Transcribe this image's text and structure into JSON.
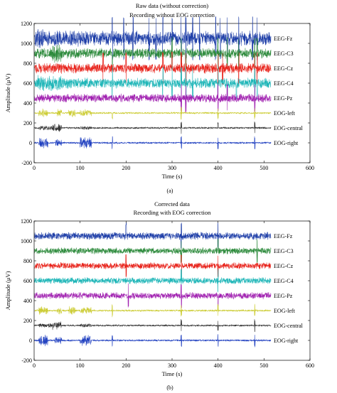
{
  "chart_data": [
    {
      "type": "line",
      "panel_label": "(a)",
      "title": "Raw data (without correction)",
      "subtitle": "Recording without EOG correction",
      "xlabel": "Time (s)",
      "ylabel": "Amplitude (μV)",
      "xlim": [
        0,
        600
      ],
      "ylim": [
        -200,
        1200
      ],
      "x_ticks": [
        "0",
        "100",
        "200",
        "300",
        "400",
        "500",
        "600"
      ],
      "y_ticks": [
        "-200",
        "0",
        "200",
        "400",
        "600",
        "800",
        "1000",
        "1200"
      ],
      "x_end": 515,
      "series": [
        {
          "name": "EEG-Fz",
          "offset": 1050,
          "color": "#1f3fa8",
          "amp": 80,
          "bursts": [
            [
              2,
              20,
              120
            ],
            [
              25,
              30,
              90
            ],
            [
              40,
              60,
              90
            ],
            [
              70,
              125,
              90
            ],
            [
              125,
              140,
              60
            ]
          ],
          "spikes": [
            170,
            195,
            215,
            250,
            265,
            280,
            300,
            320,
            330,
            345,
            360,
            395,
            405,
            420,
            445,
            475,
            485
          ]
        },
        {
          "name": "EEG-C3",
          "offset": 900,
          "color": "#2e8b3d",
          "amp": 55,
          "bursts": [
            [
              40,
              60,
              110
            ]
          ],
          "spikes": [
            170,
            300,
            320,
            330,
            400,
            420,
            445,
            480,
            485
          ]
        },
        {
          "name": "EEG-Cz",
          "offset": 750,
          "color": "#e8231b",
          "amp": 55,
          "bursts": [
            [
              40,
              60,
              60
            ]
          ],
          "spikes": [
            150,
            200,
            280,
            300,
            320,
            330,
            400,
            410,
            445,
            480,
            485
          ]
        },
        {
          "name": "EEG-C4",
          "offset": 600,
          "color": "#1fb6b8",
          "amp": 55,
          "bursts": [
            [
              8,
              60,
              90
            ],
            [
              60,
              125,
              60
            ]
          ],
          "spikes": [
            170,
            280,
            300,
            320,
            330,
            345,
            400,
            420,
            440,
            480,
            485
          ]
        },
        {
          "name": "EEG-Pz",
          "offset": 450,
          "color": "#a020b0",
          "amp": 45,
          "bursts": [],
          "spikes": [
            320,
            330,
            400,
            420,
            480
          ]
        },
        {
          "name": "EOG-left",
          "offset": 300,
          "color": "#cccc33",
          "amp": 10,
          "bursts": [
            [
              10,
              30,
              45
            ],
            [
              50,
              60,
              40
            ],
            [
              75,
              90,
              45
            ],
            [
              100,
              125,
              40
            ]
          ],
          "spikes": [
            170,
            320,
            400,
            480
          ]
        },
        {
          "name": "EOG-central",
          "offset": 150,
          "color": "#333333",
          "amp": 10,
          "bursts": [
            [
              10,
              40,
              25
            ],
            [
              40,
              60,
              45
            ],
            [
              100,
              125,
              20
            ]
          ],
          "spikes": [
            320,
            400,
            480
          ]
        },
        {
          "name": "EOG-right",
          "offset": 0,
          "color": "#2040c0",
          "amp": 10,
          "bursts": [
            [
              10,
              30,
              60
            ],
            [
              45,
              60,
              40
            ],
            [
              100,
              125,
              60
            ]
          ],
          "spikes": [
            170,
            320,
            400,
            480
          ]
        }
      ]
    },
    {
      "type": "line",
      "panel_label": "(b)",
      "title": "Corrected data",
      "subtitle": "Recording with EOG correction",
      "xlabel": "Time (s)",
      "ylabel": "Amplitude (μV)",
      "xlim": [
        0,
        600
      ],
      "ylim": [
        -200,
        1200
      ],
      "x_ticks": [
        "0",
        "100",
        "200",
        "300",
        "400",
        "500",
        "600"
      ],
      "y_ticks": [
        "-200",
        "0",
        "200",
        "400",
        "600",
        "800",
        "1000",
        "1200"
      ],
      "x_end": 515,
      "series": [
        {
          "name": "EEG-Fz",
          "offset": 1050,
          "color": "#1f3fa8",
          "amp": 40,
          "bursts": [
            [
              20,
              140,
              25
            ]
          ],
          "spikes": [
            200,
            320,
            400
          ]
        },
        {
          "name": "EEG-C3",
          "offset": 900,
          "color": "#2e8b3d",
          "amp": 35,
          "bursts": [
            [
              40,
              60,
              25
            ],
            [
              100,
              140,
              20
            ]
          ],
          "spikes": [
            320,
            400,
            485
          ]
        },
        {
          "name": "EEG-Cz",
          "offset": 750,
          "color": "#e8231b",
          "amp": 35,
          "bursts": [],
          "spikes": [
            200,
            320,
            400
          ]
        },
        {
          "name": "EEG-C4",
          "offset": 600,
          "color": "#1fb6b8",
          "amp": 35,
          "bursts": [
            [
              20,
              140,
              20
            ]
          ],
          "spikes": [
            320,
            400
          ]
        },
        {
          "name": "EEG-Pz",
          "offset": 450,
          "color": "#a020b0",
          "amp": 35,
          "bursts": [
            [
              100,
              140,
              20
            ]
          ],
          "spikes": [
            205,
            320,
            400
          ]
        },
        {
          "name": "EOG-left",
          "offset": 300,
          "color": "#cccc33",
          "amp": 10,
          "bursts": [
            [
              10,
              30,
              45
            ],
            [
              50,
              60,
              40
            ],
            [
              75,
              90,
              45
            ],
            [
              100,
              125,
              40
            ]
          ],
          "spikes": [
            170,
            320,
            400,
            480
          ]
        },
        {
          "name": "EOG-central",
          "offset": 150,
          "color": "#333333",
          "amp": 10,
          "bursts": [
            [
              10,
              40,
              25
            ],
            [
              40,
              60,
              45
            ],
            [
              100,
              125,
              20
            ]
          ],
          "spikes": [
            320,
            400,
            480
          ]
        },
        {
          "name": "EOG-right",
          "offset": 0,
          "color": "#2040c0",
          "amp": 10,
          "bursts": [
            [
              10,
              30,
              60
            ],
            [
              45,
              60,
              40
            ],
            [
              100,
              125,
              60
            ]
          ],
          "spikes": [
            170,
            320,
            400,
            480
          ]
        }
      ]
    }
  ]
}
